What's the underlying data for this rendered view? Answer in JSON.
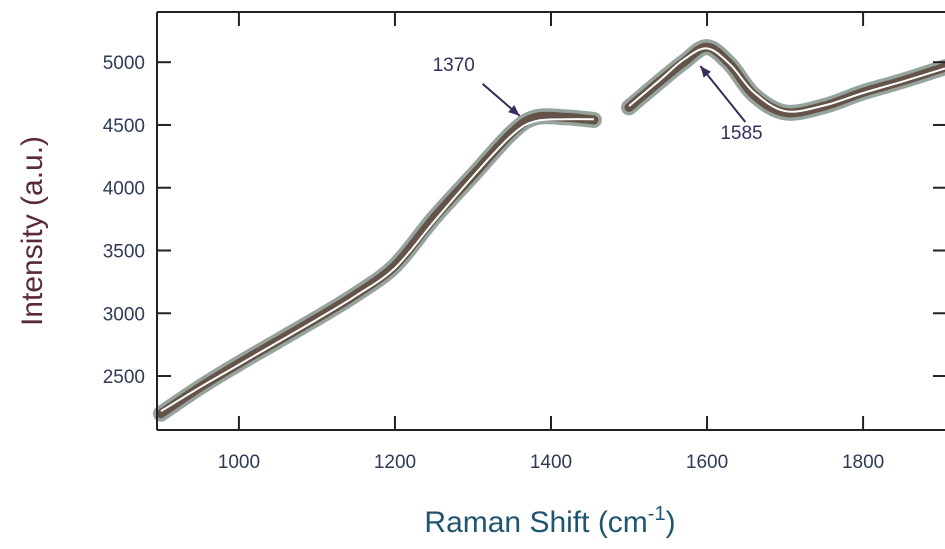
{
  "chart_data": {
    "type": "line",
    "title": "",
    "xlabel": {
      "main": "Raman Shift (cm",
      "sup": "-1",
      "close": ")"
    },
    "ylabel": "Intensity (a.u.)",
    "xlim": [
      895,
      1905
    ],
    "ylim": [
      2070,
      5400
    ],
    "x_ticks": [
      1000,
      1200,
      1400,
      1600,
      1800
    ],
    "y_ticks": [
      2500,
      3000,
      3500,
      4000,
      4500,
      5000
    ],
    "grid": false,
    "colors": {
      "data": "#5e4a3e",
      "fit": "#ffffff",
      "axis": "#222222",
      "ylabel": "#5a2a3c",
      "xlabel": "#1f5570",
      "annotation": "#3a2c5c"
    },
    "series": [
      {
        "role": "data",
        "x": [
          900,
          950,
          1000,
          1050,
          1100,
          1150,
          1200,
          1250,
          1300,
          1350,
          1380,
          1420,
          1455,
          null,
          1500,
          1540,
          1570,
          1600,
          1630,
          1660,
          1700,
          1750,
          1800,
          1850,
          1905
        ],
        "y": [
          2200,
          2410,
          2600,
          2780,
          2960,
          3150,
          3380,
          3760,
          4100,
          4440,
          4560,
          4560,
          4540,
          null,
          4640,
          4850,
          5000,
          5120,
          4980,
          4740,
          4600,
          4650,
          4760,
          4850,
          4960
        ]
      },
      {
        "role": "fit",
        "x": [
          900,
          950,
          1000,
          1050,
          1100,
          1150,
          1200,
          1250,
          1300,
          1350,
          1380,
          1420,
          1455,
          null,
          1500,
          1540,
          1570,
          1600,
          1630,
          1660,
          1700,
          1750,
          1800,
          1850,
          1905
        ],
        "y": [
          2220,
          2410,
          2590,
          2770,
          2950,
          3140,
          3360,
          3730,
          4090,
          4420,
          4530,
          4545,
          4545,
          null,
          4650,
          4860,
          5020,
          5110,
          4980,
          4760,
          4610,
          4655,
          4755,
          4845,
          4950
        ]
      }
    ],
    "annotations": [
      {
        "label": "1370",
        "x": 1370
      },
      {
        "label": "1585",
        "x": 1585
      }
    ]
  }
}
